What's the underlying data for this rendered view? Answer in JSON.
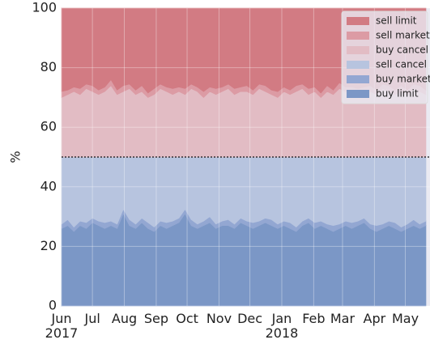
{
  "chart_data": {
    "type": "stacked_area",
    "ylabel": "%",
    "x": [
      0,
      6,
      12,
      18,
      24,
      30,
      36,
      42,
      48,
      54,
      60,
      66,
      72,
      78,
      84,
      90,
      96,
      102,
      108,
      114,
      120,
      126,
      132,
      138,
      144,
      150,
      156,
      162,
      168,
      174,
      180,
      186,
      192,
      198,
      204,
      210,
      216,
      222,
      228,
      234,
      240,
      246,
      252,
      258,
      264,
      270,
      276,
      282,
      288,
      294,
      300,
      306,
      312,
      318,
      324,
      330,
      336,
      342,
      348,
      354
    ],
    "xlim": [
      0,
      358
    ],
    "xticks": [
      {
        "value": 0,
        "label": "Jun\n2017"
      },
      {
        "value": 30,
        "label": "Jul"
      },
      {
        "value": 61,
        "label": "Aug"
      },
      {
        "value": 92,
        "label": "Sep"
      },
      {
        "value": 122,
        "label": "Oct"
      },
      {
        "value": 153,
        "label": "Nov"
      },
      {
        "value": 183,
        "label": "Dec"
      },
      {
        "value": 214,
        "label": "Jan\n2018"
      },
      {
        "value": 245,
        "label": "Feb"
      },
      {
        "value": 273,
        "label": "Mar"
      },
      {
        "value": 304,
        "label": "Apr"
      },
      {
        "value": 334,
        "label": "May"
      }
    ],
    "ylim": [
      0,
      100
    ],
    "yticks": [
      0,
      20,
      40,
      60,
      80,
      100
    ],
    "grid": true,
    "hline": 50,
    "legend": "upper right",
    "series": [
      {
        "name": "buy limit",
        "color": "#7b97c6",
        "values": [
          26,
          27,
          25,
          27,
          26,
          28,
          27,
          26,
          27,
          26,
          31,
          27,
          26,
          28,
          26,
          25,
          27,
          26,
          27,
          28,
          31,
          27,
          26,
          27,
          28,
          26,
          27,
          27,
          26,
          28,
          27,
          26,
          27,
          28,
          27,
          26,
          27,
          26,
          25,
          27,
          28,
          26,
          27,
          26,
          25,
          26,
          27,
          26,
          27,
          28,
          26,
          25,
          26,
          27,
          26,
          25,
          26,
          27,
          26,
          27
        ]
      },
      {
        "name": "buy market",
        "color": "#93a7d2",
        "values": [
          1.5,
          2,
          1.5,
          1.5,
          2,
          1.5,
          1.5,
          2,
          1.5,
          1.5,
          1.5,
          2,
          1.5,
          1.5,
          2,
          1.5,
          1.5,
          2,
          1.5,
          1.5,
          1.5,
          2,
          1.5,
          1.5,
          2,
          1.5,
          1.5,
          2,
          1.5,
          1.5,
          1.5,
          2,
          1.5,
          1.5,
          2,
          1.5,
          1.5,
          2,
          1.5,
          1.5,
          1.5,
          2,
          1.5,
          1.5,
          2,
          1.5,
          1.5,
          2,
          1.5,
          1.5,
          1.5,
          2,
          1.5,
          1.5,
          2,
          1.5,
          1.5,
          2,
          1.5,
          1.5
        ]
      },
      {
        "name": "sell cancel",
        "color": "#b7c4df",
        "values": [
          22.5,
          21,
          23.5,
          21.5,
          22,
          20.5,
          21.5,
          22,
          21.5,
          22.5,
          17.5,
          21,
          22.5,
          20.5,
          22,
          23.5,
          21.5,
          22,
          21.5,
          20.5,
          17.5,
          21,
          22.5,
          21.5,
          20,
          22.5,
          21.5,
          21,
          22.5,
          20.5,
          21.5,
          22,
          21.5,
          20.5,
          21,
          22.5,
          21.5,
          22,
          23.5,
          21.5,
          20.5,
          22,
          21.5,
          22.5,
          23,
          22.5,
          21.5,
          22,
          21.5,
          20.5,
          22.5,
          23,
          22.5,
          21.5,
          22,
          23.5,
          22.5,
          21,
          22.5,
          21.5
        ]
      },
      {
        "name": "buy cancel",
        "color": "#e2bcc4",
        "values": [
          20,
          21,
          22,
          21,
          23,
          22,
          21,
          22,
          24,
          21,
          22,
          23,
          21,
          22,
          20,
          21,
          23,
          22,
          21,
          22,
          21,
          23,
          22,
          20,
          22,
          21,
          22,
          23,
          21,
          22,
          22,
          21,
          23,
          22,
          21,
          20,
          22,
          21,
          22,
          23,
          21,
          22,
          20,
          22,
          21,
          23,
          22,
          22,
          21,
          22,
          22,
          21,
          23,
          22,
          21,
          22,
          21,
          23,
          22,
          21
        ]
      },
      {
        "name": "sell market",
        "color": "#dc9ba4",
        "values": [
          2,
          1.5,
          1.5,
          2,
          1.5,
          2,
          1.5,
          1.5,
          2,
          1.5,
          2,
          1.5,
          1.5,
          2,
          1.5,
          2,
          1.5,
          1.5,
          2,
          1.5,
          2,
          1.5,
          1.5,
          2,
          1.5,
          2,
          1.5,
          1.5,
          2,
          1.5,
          2,
          1.5,
          1.5,
          2,
          1.5,
          2,
          1.5,
          1.5,
          2,
          1.5,
          2,
          1.5,
          1.5,
          2,
          1.5,
          2,
          1.5,
          1.5,
          2,
          1.5,
          2,
          1.5,
          1.5,
          2,
          1.5,
          2,
          1.5,
          1.5,
          2,
          1.5
        ]
      },
      {
        "name": "sell limit",
        "color": "#d27b83",
        "values": [
          28,
          27.5,
          26.5,
          27,
          25.5,
          26,
          27.5,
          26.5,
          24,
          27.5,
          26,
          25.5,
          27.5,
          26,
          28.5,
          27,
          25.5,
          26.5,
          27,
          26.5,
          27,
          25.5,
          26.5,
          28,
          26.5,
          27,
          26.5,
          25.5,
          27,
          26.5,
          26,
          27.5,
          25.5,
          26,
          27.5,
          28,
          26.5,
          27.5,
          26,
          25.5,
          27,
          26.5,
          28.5,
          26,
          27.5,
          25,
          26.5,
          26.5,
          27,
          26.5,
          26,
          27.5,
          25.5,
          26,
          27.5,
          26,
          27.5,
          25.5,
          26,
          27.5
        ]
      }
    ]
  }
}
